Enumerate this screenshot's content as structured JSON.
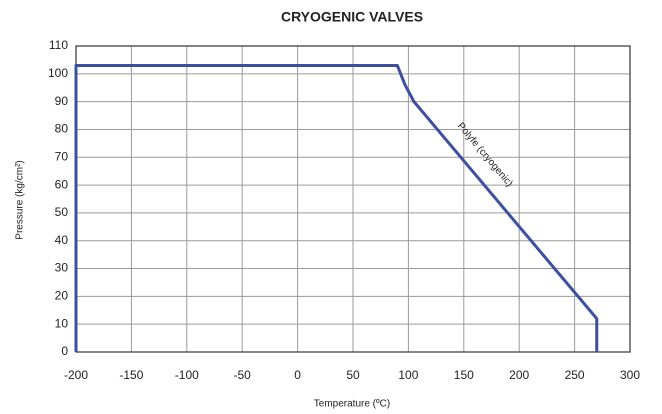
{
  "chart_data": {
    "type": "line",
    "title": "CRYOGENIC VALVES",
    "xlabel": "Temperature (ºC)",
    "ylabel": "Pressure (kg/cm²)",
    "annotation": "Polyfe (cryogenic)",
    "x": [
      -200,
      -200,
      90,
      97,
      105,
      270,
      270
    ],
    "series": [
      {
        "name": "Polyfe (cryogenic)",
        "color": "#3d4f9f",
        "values": [
          0,
          103,
          103,
          96,
          90,
          12,
          0
        ]
      }
    ],
    "xlim": [
      -200,
      300
    ],
    "xticks": [
      -200,
      -150,
      -100,
      -50,
      0,
      50,
      100,
      150,
      200,
      250,
      300
    ],
    "ylim": [
      0,
      110
    ],
    "yticks": [
      0,
      10,
      20,
      30,
      40,
      50,
      60,
      70,
      80,
      90,
      100,
      110
    ],
    "grid": true
  }
}
